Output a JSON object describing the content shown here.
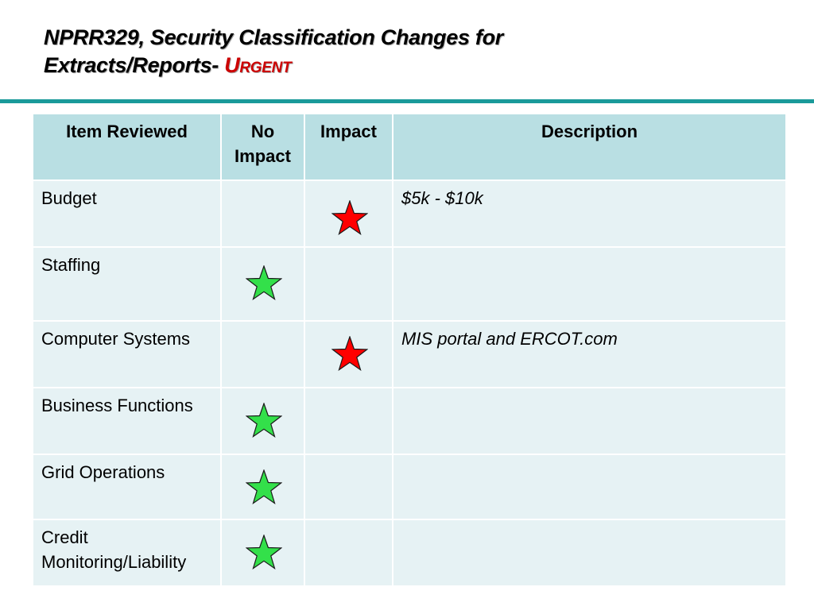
{
  "title": {
    "line1": "NPRR329, Security Classification Changes for",
    "line2": "Extracts/Reports-",
    "urgent": "Urgent"
  },
  "colors": {
    "rule": "#1a9a9a",
    "header_bg": "#b9dfe3",
    "row_bg": "#e6f2f4",
    "urgent": "#cc0000",
    "impact_star": "#ff0000",
    "no_impact_star": "#33e04a"
  },
  "table": {
    "headers": [
      "Item Reviewed",
      "No Impact",
      "Impact",
      "Description"
    ],
    "rows": [
      {
        "item": "Budget",
        "no_impact": false,
        "impact": true,
        "description": "$5k - $10k"
      },
      {
        "item": "Staffing",
        "no_impact": true,
        "impact": false,
        "description": ""
      },
      {
        "item": "Computer Systems",
        "no_impact": false,
        "impact": true,
        "description": "MIS portal and ERCOT.com"
      },
      {
        "item": "Business Functions",
        "no_impact": true,
        "impact": false,
        "description": ""
      },
      {
        "item": "Grid Operations",
        "no_impact": true,
        "impact": false,
        "description": ""
      },
      {
        "item": "Credit Monitoring/Liability",
        "no_impact": true,
        "impact": false,
        "description": ""
      }
    ]
  },
  "icons": {
    "impact": "red-star-icon",
    "no_impact": "green-star-icon"
  }
}
